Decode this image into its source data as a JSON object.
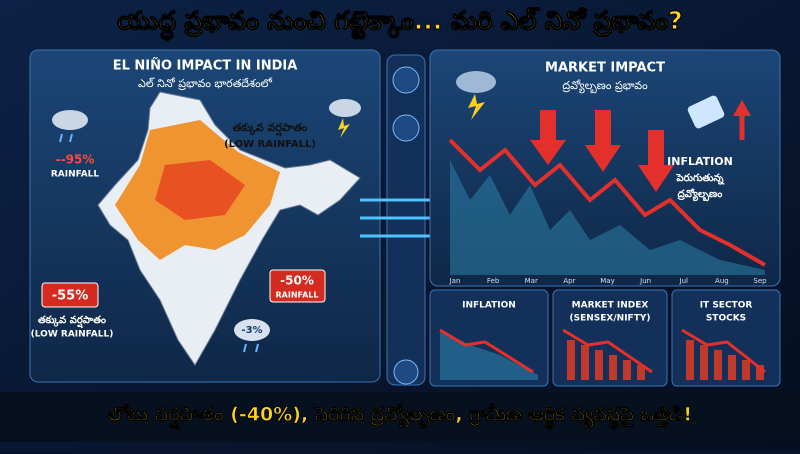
{
  "header": {
    "title": "యుద్ధ ప్రభావం నుంచి గట్టెక్కాం... మరి ఎల్ నినో ప్రభావం?"
  },
  "left_panel": {
    "title": "EL NIÑO IMPACT IN INDIA",
    "subtitle": "ఎల్ నినో ప్రభావం భారతదేశంలో",
    "callouts": [
      {
        "value": "--95%",
        "label": "RAINFALL"
      },
      {
        "label": "తక్కువ వర్షపాతం",
        "note": "(LOW RAINFALL)"
      },
      {
        "value": "-55%",
        "label": "తక్కువ వర్షపాతం",
        "note": "(LOW RAINFALL)"
      },
      {
        "value": "-50%",
        "label": "RAINFALL"
      },
      {
        "value": "-3%"
      }
    ]
  },
  "right_panel": {
    "title": "MARKET IMPACT",
    "subtitle": "ద్రవ్యోల్బణం ప్రభావం",
    "inflation_callout": [
      "INFLATION",
      "పెరుగుతున్న",
      "ద్రవ్యోల్బణం"
    ],
    "months": [
      "Jan",
      "Feb",
      "Mar",
      "Apr",
      "May",
      "Jun",
      "Jul",
      "Aug",
      "Sep"
    ]
  },
  "bottom_panels": [
    {
      "title": [
        "INFLATION"
      ]
    },
    {
      "title": [
        "MARKET INDEX",
        "(SENSEX/NIFTY)"
      ]
    },
    {
      "title": [
        "IT SECTOR",
        "STOCKS"
      ]
    }
  ],
  "footer": {
    "text": "లోటు వర్షపాతం (-40%), పెరిగిన ద్రవ్యోల్బణం, గ్రామీణ ఆర్థిక వ్యవస్థపై ఒత్తిడి!"
  }
}
